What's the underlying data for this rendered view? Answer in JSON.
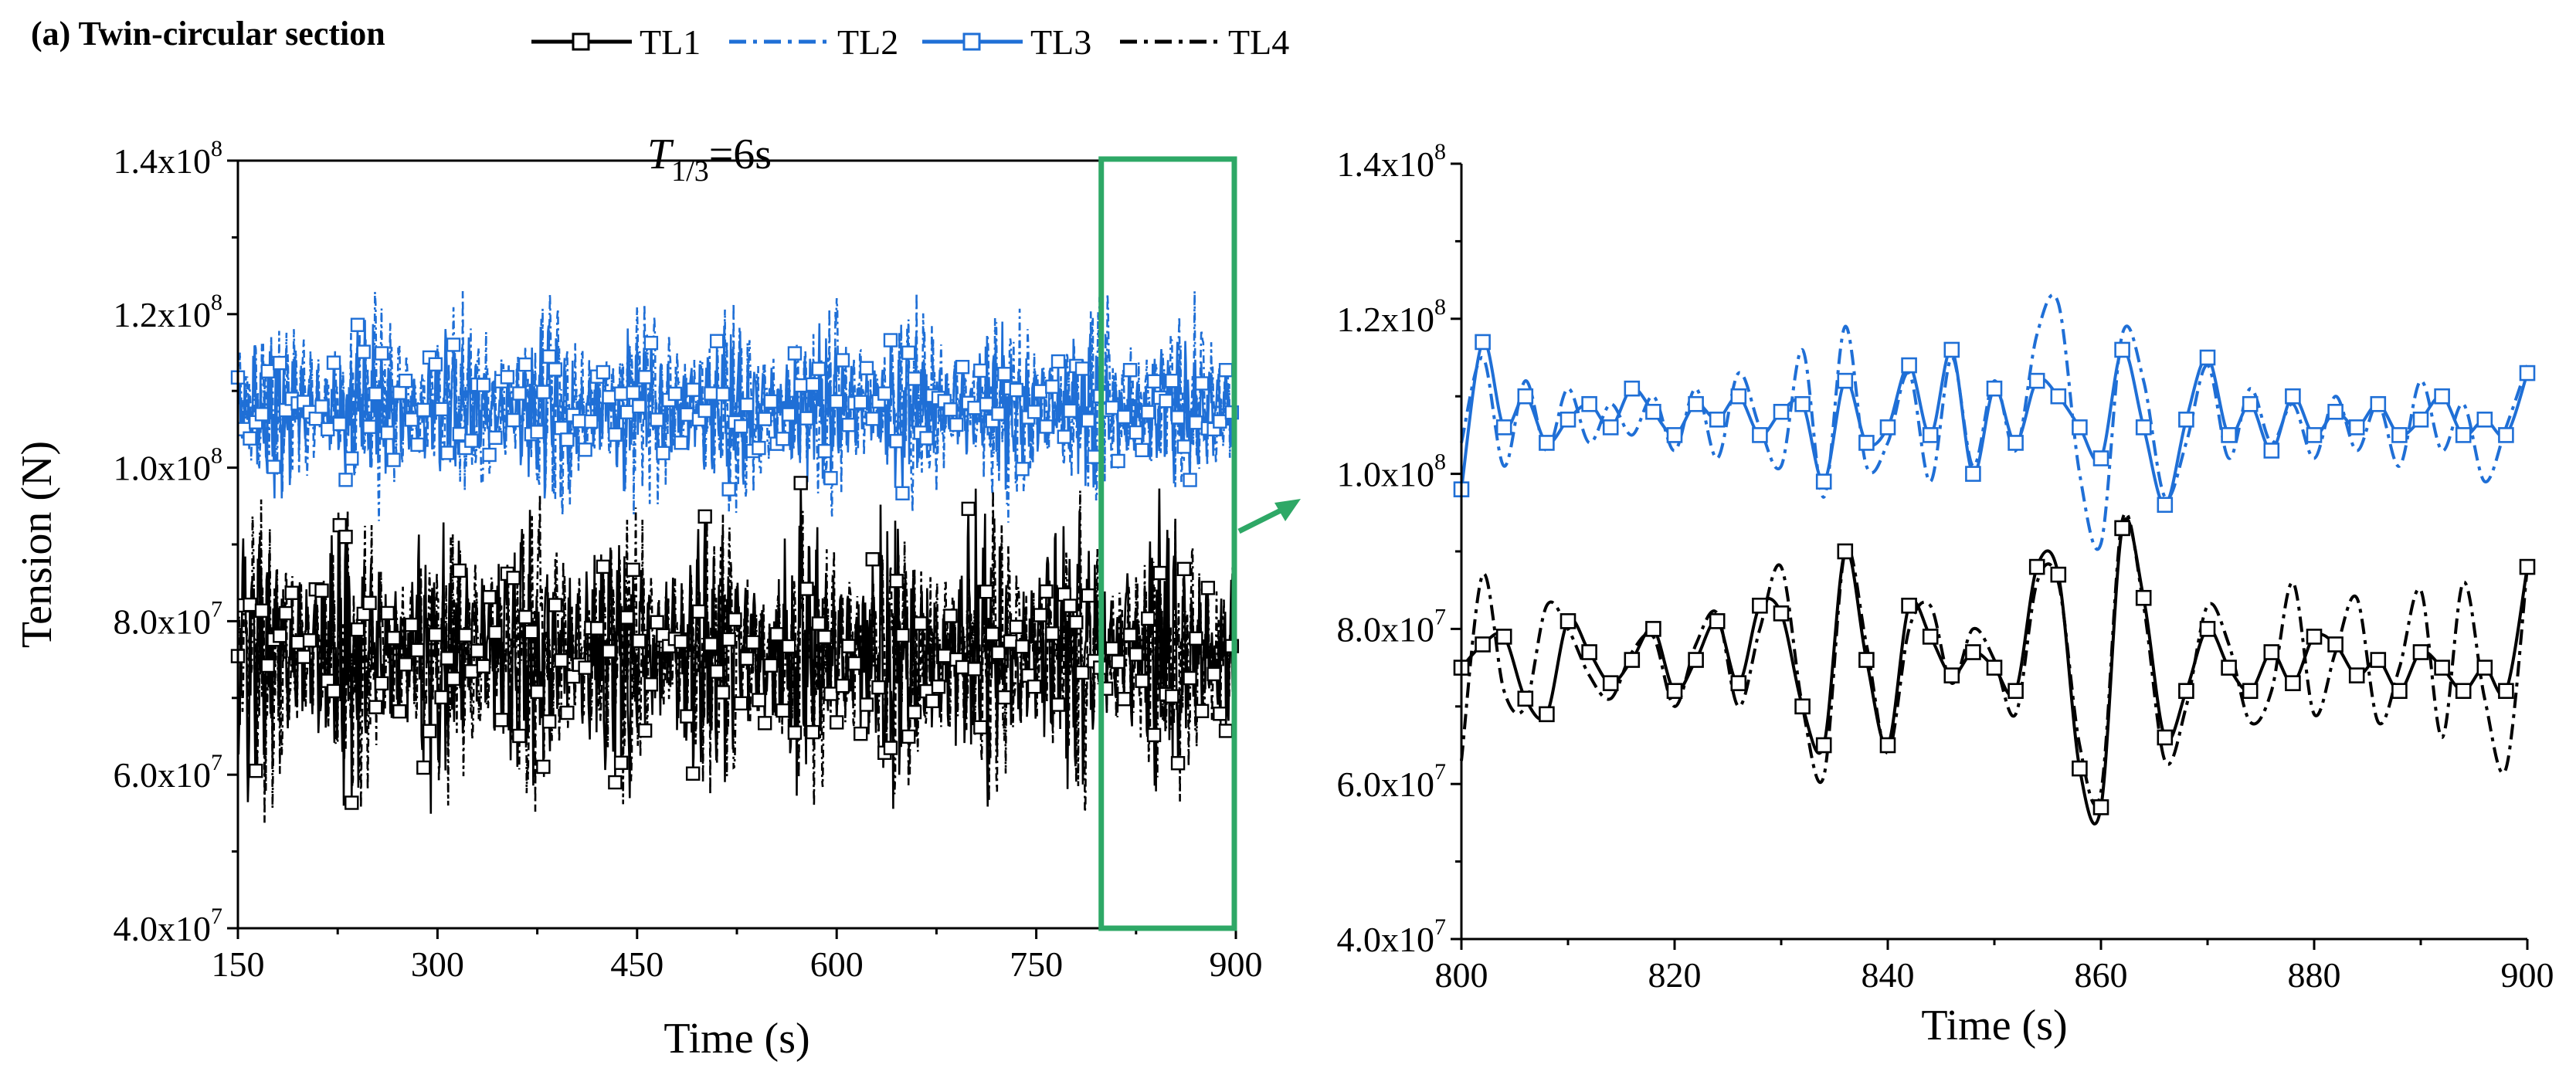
{
  "panel_label": "(a) Twin-circular section",
  "legend": [
    {
      "name": "TL1",
      "color": "#000000",
      "dash": "solid",
      "marker": "square"
    },
    {
      "name": "TL2",
      "color": "#1f6fd6",
      "dash": "dashdot",
      "marker": "none"
    },
    {
      "name": "TL3",
      "color": "#1f6fd6",
      "dash": "solid",
      "marker": "square"
    },
    {
      "name": "TL4",
      "color": "#000000",
      "dash": "dashdot",
      "marker": "none"
    }
  ],
  "colors": {
    "blue": "#1f6fd6",
    "black": "#000000",
    "highlight": "#2ea866"
  },
  "chart_data": [
    {
      "type": "line",
      "id": "overview",
      "annotation": {
        "base": "T",
        "sub": "1/3",
        "rest": "=6s"
      },
      "xlabel": "Time (s)",
      "ylabel": "Tension (N)",
      "xlim": [
        150,
        900
      ],
      "ylim": [
        40000000.0,
        140000000.0
      ],
      "xticks": [
        150,
        300,
        450,
        600,
        750,
        900
      ],
      "xtick_labels": [
        "150",
        "300",
        "450",
        "600",
        "750",
        "900"
      ],
      "yticks": [
        40000000.0,
        60000000.0,
        80000000.0,
        100000000.0,
        120000000.0,
        140000000.0
      ],
      "ytick_labels": [
        {
          "mant": "4.0x10",
          "exp": "7"
        },
        {
          "mant": "6.0x10",
          "exp": "7"
        },
        {
          "mant": "8.0x10",
          "exp": "7"
        },
        {
          "mant": "1.0x10",
          "exp": "8"
        },
        {
          "mant": "1.2x10",
          "exp": "8"
        },
        {
          "mant": "1.4x10",
          "exp": "8"
        }
      ],
      "series": [
        {
          "name": "TL1",
          "mean": 76000000.0,
          "min": 54000000.0,
          "max": 98000000.0
        },
        {
          "name": "TL2",
          "mean": 108000000.0,
          "min": 91000000.0,
          "max": 123000000.0
        },
        {
          "name": "TL3",
          "mean": 107500000.0,
          "min": 96000000.0,
          "max": 121000000.0
        },
        {
          "name": "TL4",
          "mean": 76000000.0,
          "min": 53000000.0,
          "max": 97000000.0
        }
      ],
      "highlight_range": [
        800,
        900
      ]
    },
    {
      "type": "line",
      "id": "zoom",
      "xlabel": "Time (s)",
      "ylabel": "",
      "xlim": [
        800,
        900
      ],
      "ylim": [
        40000000.0,
        140000000.0
      ],
      "xticks": [
        800,
        820,
        840,
        860,
        880,
        900
      ],
      "xtick_labels": [
        "800",
        "820",
        "840",
        "860",
        "880",
        "900"
      ],
      "yticks": [
        40000000.0,
        60000000.0,
        80000000.0,
        100000000.0,
        120000000.0,
        140000000.0
      ],
      "ytick_labels": [
        {
          "mant": "4.0x10",
          "exp": "7"
        },
        {
          "mant": "6.0x10",
          "exp": "7"
        },
        {
          "mant": "8.0x10",
          "exp": "7"
        },
        {
          "mant": "1.0x10",
          "exp": "8"
        },
        {
          "mant": "1.2x10",
          "exp": "8"
        },
        {
          "mant": "1.4x10",
          "exp": "8"
        }
      ],
      "series": [
        {
          "name": "TL1",
          "x": [
            800,
            802,
            804,
            806,
            808,
            810,
            812,
            814,
            816,
            818,
            820,
            822,
            824,
            826,
            828,
            830,
            832,
            834,
            836,
            838,
            840,
            842,
            844,
            846,
            848,
            850,
            852,
            854,
            856,
            858,
            860,
            862,
            864,
            866,
            868,
            870,
            872,
            874,
            876,
            878,
            880,
            882,
            884,
            886,
            888,
            890,
            892,
            894,
            896,
            898,
            900
          ],
          "values": [
            75000000.0,
            78000000.0,
            79000000.0,
            71000000.0,
            69000000.0,
            81000000.0,
            77000000.0,
            73000000.0,
            76000000.0,
            80000000.0,
            72000000.0,
            76000000.0,
            81000000.0,
            73000000.0,
            83000000.0,
            82000000.0,
            70000000.0,
            65000000.0,
            90000000.0,
            76000000.0,
            65000000.0,
            83000000.0,
            79000000.0,
            74000000.0,
            77000000.0,
            75000000.0,
            72000000.0,
            88000000.0,
            87000000.0,
            62000000.0,
            57000000.0,
            93000000.0,
            84000000.0,
            66000000.0,
            72000000.0,
            80000000.0,
            75000000.0,
            72000000.0,
            77000000.0,
            73000000.0,
            79000000.0,
            78000000.0,
            74000000.0,
            76000000.0,
            72000000.0,
            77000000.0,
            75000000.0,
            72000000.0,
            75000000.0,
            72000000.0,
            88000000.0
          ]
        },
        {
          "name": "TL2",
          "x": [
            800,
            802,
            804,
            806,
            808,
            810,
            812,
            814,
            816,
            818,
            820,
            822,
            824,
            826,
            828,
            830,
            832,
            834,
            836,
            838,
            840,
            842,
            844,
            846,
            848,
            850,
            852,
            854,
            856,
            858,
            860,
            862,
            864,
            866,
            868,
            870,
            872,
            874,
            876,
            878,
            880,
            882,
            884,
            886,
            888,
            890,
            892,
            894,
            896,
            898,
            900
          ],
          "values": [
            104000000.0,
            115000000.0,
            101000000.0,
            112000000.0,
            103000000.0,
            111000000.0,
            104000000.0,
            109000000.0,
            105000000.0,
            110000000.0,
            103000000.0,
            111000000.0,
            102000000.0,
            113000000.0,
            106000000.0,
            101000000.0,
            116000000.0,
            97000000.0,
            119000000.0,
            101000000.0,
            104000000.0,
            113000000.0,
            99000000.0,
            115000000.0,
            101000000.0,
            112000000.0,
            103000000.0,
            118000000.0,
            122000000.0,
            100000000.0,
            91000000.0,
            118000000.0,
            112000000.0,
            97000000.0,
            104000000.0,
            114000000.0,
            102000000.0,
            111000000.0,
            104000000.0,
            109000000.0,
            102000000.0,
            110000000.0,
            103000000.0,
            109000000.0,
            101000000.0,
            112000000.0,
            103000000.0,
            109000000.0,
            99000000.0,
            106000000.0,
            114000000.0
          ]
        },
        {
          "name": "TL3",
          "x": [
            800,
            802,
            804,
            806,
            808,
            810,
            812,
            814,
            816,
            818,
            820,
            822,
            824,
            826,
            828,
            830,
            832,
            834,
            836,
            838,
            840,
            842,
            844,
            846,
            848,
            850,
            852,
            854,
            856,
            858,
            860,
            862,
            864,
            866,
            868,
            870,
            872,
            874,
            876,
            878,
            880,
            882,
            884,
            886,
            888,
            890,
            892,
            894,
            896,
            898,
            900
          ],
          "values": [
            98000000.0,
            117000000.0,
            106000000.0,
            110000000.0,
            104000000.0,
            107000000.0,
            109000000.0,
            106000000.0,
            111000000.0,
            108000000.0,
            105000000.0,
            109000000.0,
            107000000.0,
            110000000.0,
            105000000.0,
            108000000.0,
            109000000.0,
            99000000.0,
            112000000.0,
            104000000.0,
            106000000.0,
            114000000.0,
            105000000.0,
            116000000.0,
            100000000.0,
            111000000.0,
            104000000.0,
            112000000.0,
            110000000.0,
            106000000.0,
            102000000.0,
            116000000.0,
            106000000.0,
            96000000.0,
            107000000.0,
            115000000.0,
            105000000.0,
            109000000.0,
            103000000.0,
            110000000.0,
            105000000.0,
            108000000.0,
            106000000.0,
            109000000.0,
            105000000.0,
            107000000.0,
            110000000.0,
            105000000.0,
            107000000.0,
            105000000.0,
            113000000.0
          ]
        },
        {
          "name": "TL4",
          "x": [
            800,
            802,
            804,
            806,
            808,
            810,
            812,
            814,
            816,
            818,
            820,
            822,
            824,
            826,
            828,
            830,
            832,
            834,
            836,
            838,
            840,
            842,
            844,
            846,
            848,
            850,
            852,
            854,
            856,
            858,
            860,
            862,
            864,
            866,
            868,
            870,
            872,
            874,
            876,
            878,
            880,
            882,
            884,
            886,
            888,
            890,
            892,
            894,
            896,
            898,
            900
          ],
          "values": [
            63000000.0,
            87000000.0,
            72000000.0,
            70000000.0,
            83000000.0,
            80000000.0,
            74000000.0,
            71000000.0,
            77000000.0,
            79000000.0,
            70000000.0,
            78000000.0,
            82000000.0,
            70000000.0,
            80000000.0,
            88000000.0,
            70000000.0,
            61000000.0,
            90000000.0,
            78000000.0,
            64000000.0,
            80000000.0,
            83000000.0,
            73000000.0,
            80000000.0,
            76000000.0,
            69000000.0,
            86000000.0,
            86000000.0,
            65000000.0,
            59000000.0,
            94000000.0,
            83000000.0,
            63000000.0,
            70000000.0,
            83000000.0,
            78000000.0,
            68000000.0,
            72000000.0,
            86000000.0,
            69000000.0,
            77000000.0,
            84000000.0,
            68000000.0,
            75000000.0,
            85000000.0,
            66000000.0,
            86000000.0,
            71000000.0,
            62000000.0,
            88000000.0
          ]
        }
      ]
    }
  ]
}
